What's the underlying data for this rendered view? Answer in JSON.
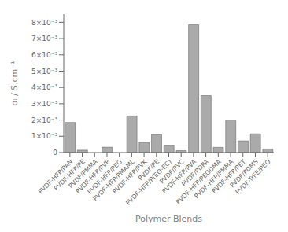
{
  "chart_data": {
    "type": "bar",
    "xlabel": "Polymer Blends",
    "ylabel": "σᵢ / S.cm⁻¹",
    "categories": [
      "PVDF-HFP/PAN",
      "PVDF-HFP/PE",
      "PVDF/PMMA",
      "PVDF-HFP/PVP",
      "PVDF-HFP/PEG",
      "PVDF-HFP/PMAML",
      "PVDF-HFP/PVK",
      "PVDF/PE",
      "PVDF-HFP/P(EO-EC)",
      "PVDF/PVC",
      "PVDF-HFP/PVA",
      "PVDF/PDPA",
      "PVDF-HFP/PEGDMA",
      "PVDF-HFP/PMMA",
      "PVDF-HFP/PET",
      "PVDF/PDMS",
      "PVDF-TrFE/PEO"
    ],
    "values": [
      0.00185,
      0.00015,
      0.0,
      0.00033,
      0.0,
      0.00225,
      0.00062,
      0.0011,
      0.00042,
      0.00012,
      0.00785,
      0.0035,
      0.00032,
      0.002,
      0.00072,
      0.00115,
      0.00022
    ],
    "color": "#aaaaaa",
    "ylim": [
      0,
      0.0085
    ],
    "yticks": [
      0,
      {
        "value": 0.001,
        "label": "1×10⁻³"
      },
      {
        "value": 0.002,
        "label": "2×10⁻³"
      },
      {
        "value": 0.003,
        "label": "3×10⁻³"
      },
      {
        "value": 0.004,
        "label": "4×10⁻³"
      },
      {
        "value": 0.005,
        "label": "5×10⁻³"
      },
      {
        "value": 0.006,
        "label": "6×10⁻³"
      },
      {
        "value": 0.007,
        "label": "7×10⁻³"
      },
      {
        "value": 0.008,
        "label": "8×10⁻³"
      }
    ],
    "grid": false
  }
}
